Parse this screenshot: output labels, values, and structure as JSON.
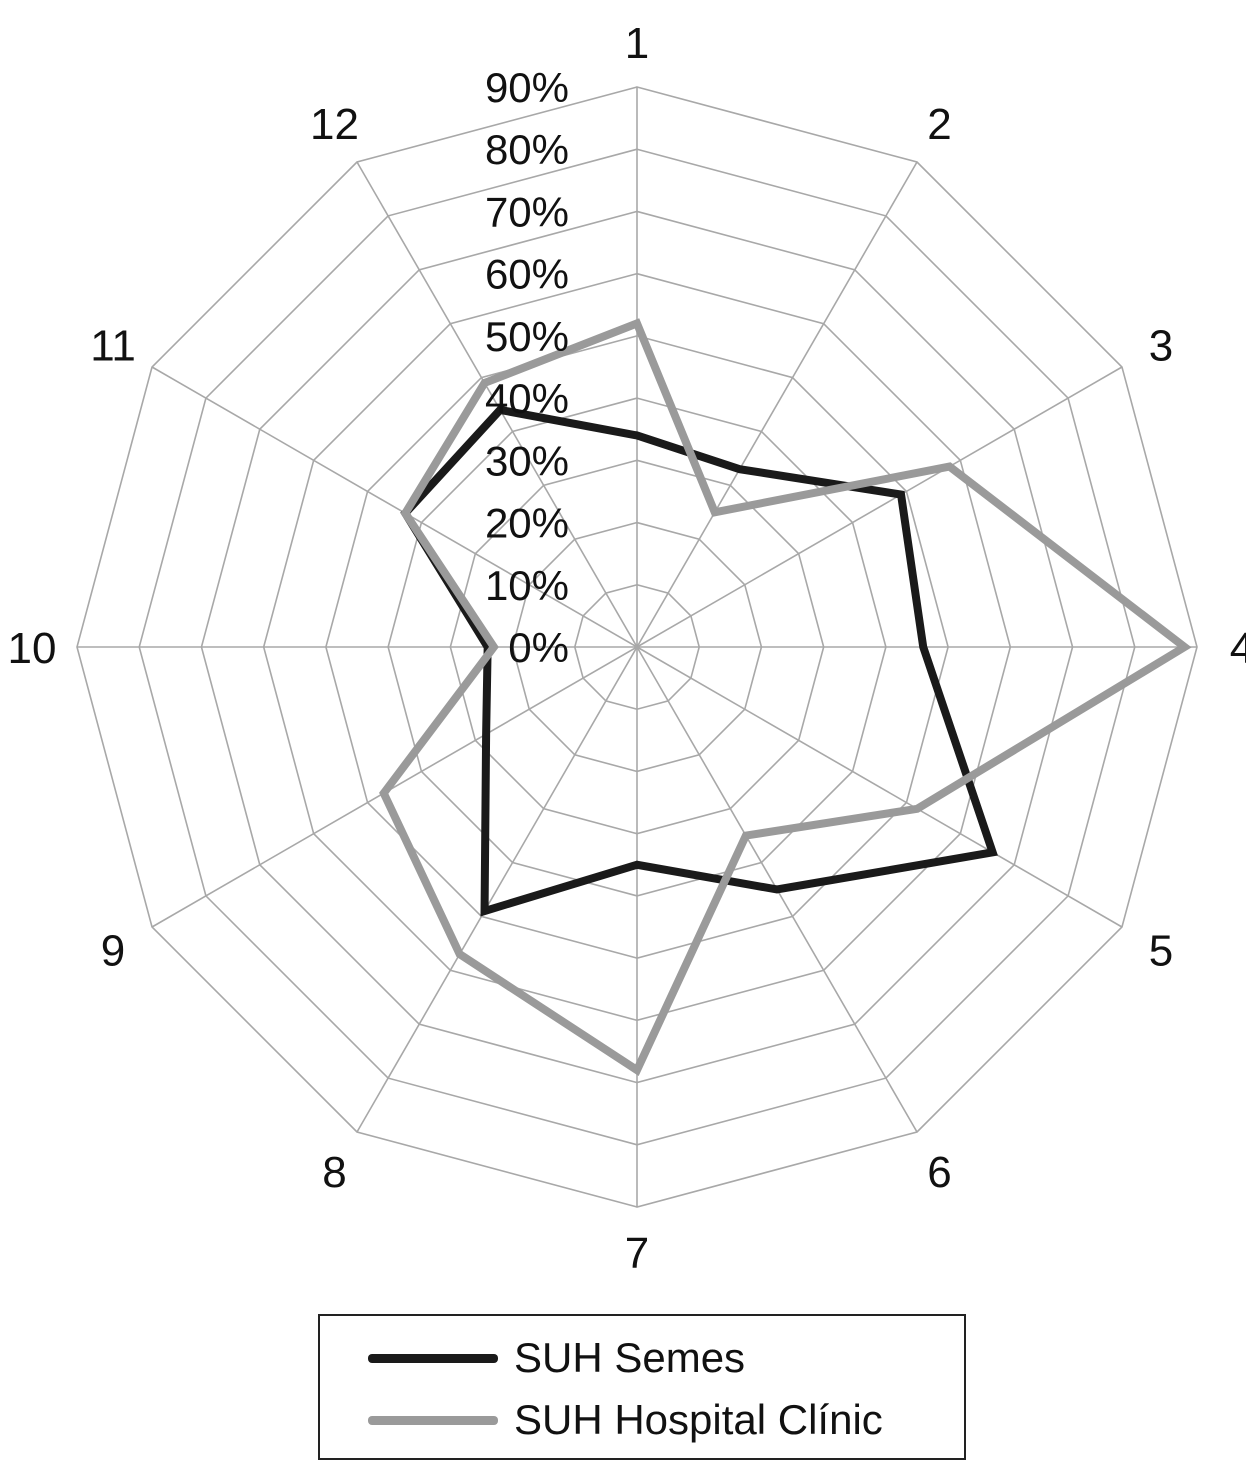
{
  "chart_data": {
    "type": "radar",
    "categories": [
      "1",
      "2",
      "3",
      "4",
      "5",
      "6",
      "7",
      "8",
      "9",
      "10",
      "11",
      "12"
    ],
    "tick_labels": [
      "0%",
      "10%",
      "20%",
      "30%",
      "40%",
      "50%",
      "60%",
      "70%",
      "80%",
      "90%"
    ],
    "rlim": [
      0,
      90
    ],
    "grid": true,
    "legend_position": "bottom",
    "series": [
      {
        "name": "SUH Semes",
        "color": "#1a1a1a",
        "values": [
          34,
          33,
          49,
          46,
          66,
          45,
          35,
          49,
          28,
          24,
          43,
          44
        ]
      },
      {
        "name": "SUH Hospital Clínic",
        "color": "#9a9a9a",
        "values": [
          52,
          25,
          58,
          88,
          52,
          35,
          68,
          57,
          47,
          23,
          43,
          49
        ]
      }
    ]
  }
}
